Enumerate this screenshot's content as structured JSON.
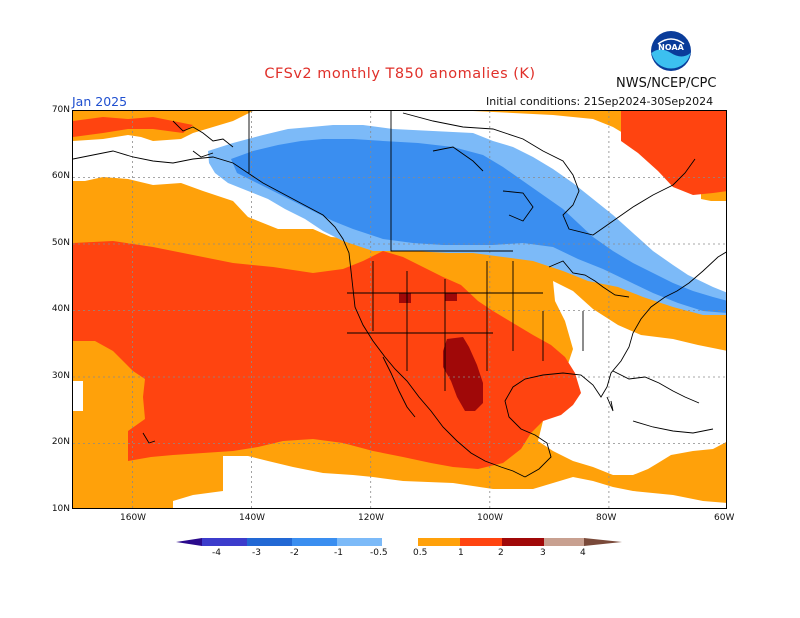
{
  "title": "CFSv2 monthly T850 anomalies (K)",
  "agency": "NWS/NCEP/CPC",
  "logo_text": "NOAA",
  "month_label": "Jan 2025",
  "initial_conditions": "Initial conditions: 21Sep2024-30Sep2024",
  "map": {
    "lon_range": [
      -170,
      -60
    ],
    "lat_range": [
      10,
      70
    ],
    "lat_labels": [
      "70N",
      "60N",
      "50N",
      "40N",
      "30N",
      "20N",
      "10N"
    ],
    "lon_labels": [
      "160W",
      "140W",
      "120W",
      "100W",
      "80W",
      "60W"
    ]
  },
  "colorbar": {
    "labels": [
      "-4",
      "-3",
      "-2",
      "-1",
      "-0.5",
      "0.5",
      "1",
      "2",
      "3",
      "4"
    ],
    "colors": {
      "lt_-4": "#2a0a8c",
      "-4_-3": "#3c3ccc",
      "-3_-2": "#2268d4",
      "-2_-1": "#3a8ef0",
      "-1_-0.5": "#7cbaf8",
      "-0.5_0.5": "#ffffff",
      "0.5_1": "#ffa10a",
      "1_2": "#ff4410",
      "2_3": "#a00808",
      "3_4": "#c8a090",
      "gt_4": "#7a4a3a"
    }
  }
}
